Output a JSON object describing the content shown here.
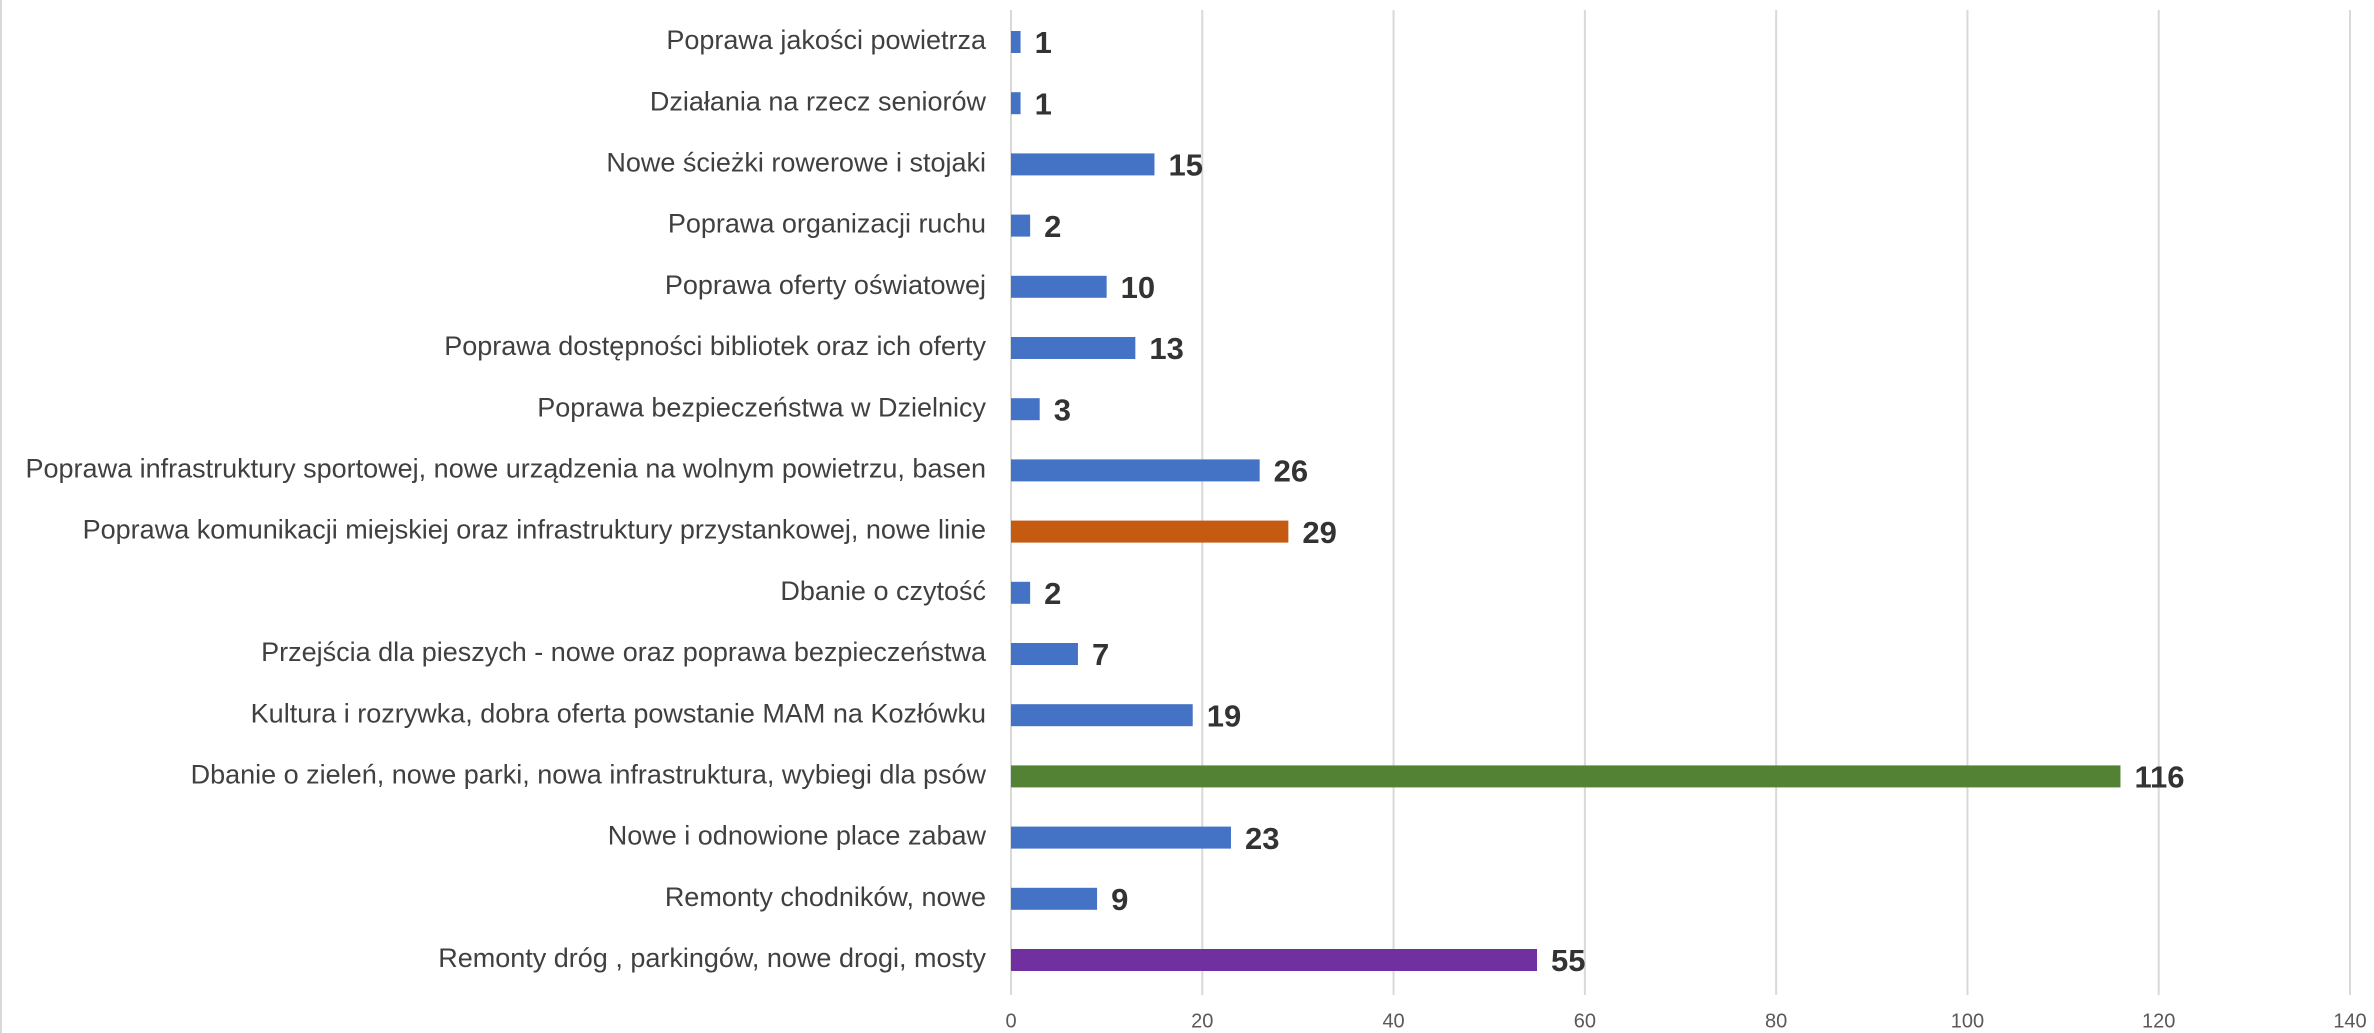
{
  "chart_data": {
    "type": "hbar",
    "categories": [
      "Poprawa jakości powietrza",
      "Działania na rzecz seniorów",
      "Nowe ścieżki rowerowe i stojaki",
      "Poprawa organizacji ruchu",
      "Poprawa oferty oświatowej",
      "Poprawa dostępności bibliotek  oraz ich oferty",
      "Poprawa bezpieczeństwa w Dzielnicy",
      "Poprawa infrastruktury sportowej, nowe urządzenia na wolnym powietrzu, basen",
      "Poprawa komunikacji miejskiej oraz infrastruktury przystankowej, nowe linie",
      "Dbanie o czytość",
      "Przejścia dla pieszych - nowe oraz poprawa bezpieczeństwa",
      "Kultura i rozrywka, dobra oferta powstanie MAM na Kozłówku",
      "Dbanie o zieleń, nowe parki, nowa infrastruktura, wybiegi dla psów",
      "Nowe i odnowione place zabaw",
      "Remonty  chodników, nowe",
      "Remonty dróg , parkingów, nowe drogi, mosty"
    ],
    "values": [
      1,
      1,
      15,
      2,
      10,
      13,
      3,
      26,
      29,
      2,
      7,
      19,
      116,
      23,
      9,
      55
    ],
    "colors": [
      "#4472c4",
      "#4472c4",
      "#4472c4",
      "#4472c4",
      "#4472c4",
      "#4472c4",
      "#4472c4",
      "#4472c4",
      "#c55a11",
      "#4472c4",
      "#4472c4",
      "#4472c4",
      "#548235",
      "#4472c4",
      "#4472c4",
      "#7030a0"
    ],
    "xlim": [
      0,
      140
    ],
    "xticks": [
      0,
      20,
      40,
      60,
      80,
      100,
      120,
      140
    ],
    "grid": true
  }
}
